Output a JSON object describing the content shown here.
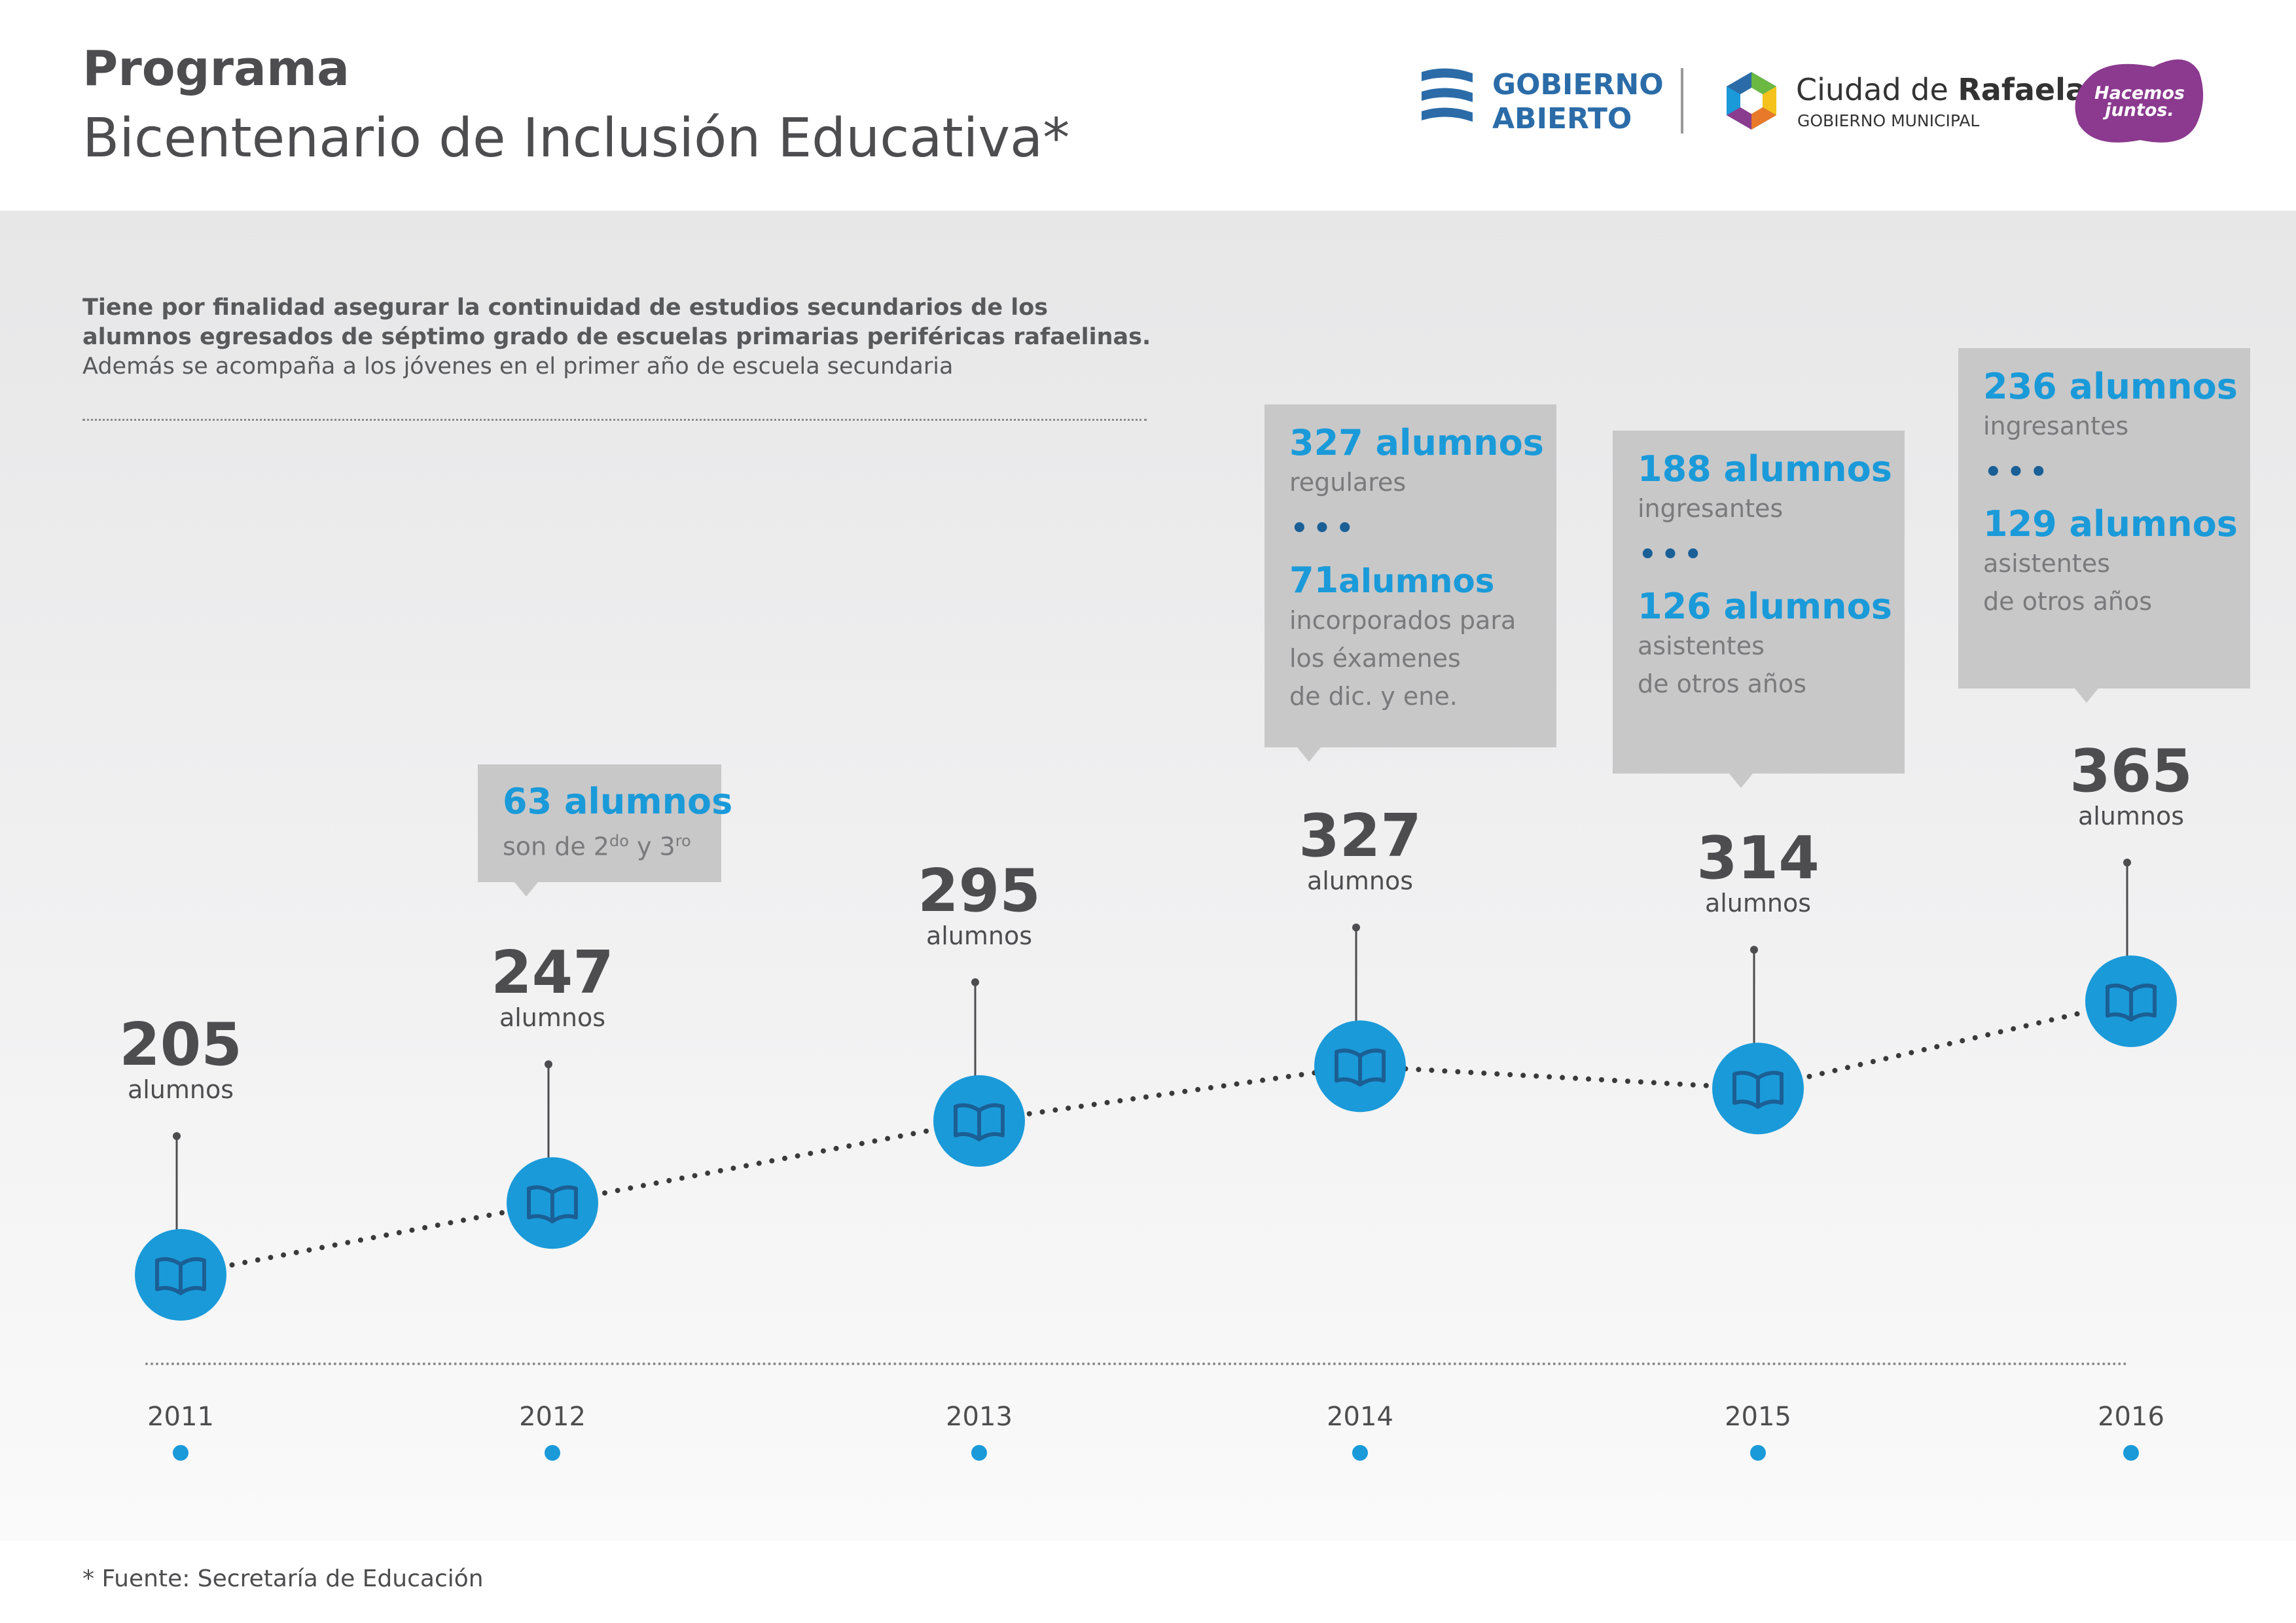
{
  "header": {
    "title_bold": "Programa",
    "title_main": "Bicentenario de Inclusión Educativa*",
    "logo_gobierno_abierto": {
      "line1": "GOBIERNO",
      "line2": "ABIERTO"
    },
    "logo_ciudad": {
      "name_prefix": "Ciudad de ",
      "name_bold": "Rafaela",
      "sub": "GOBIERNO MUNICIPAL"
    },
    "logo_hacemos": {
      "line1": "Hacemos",
      "line2": "juntos."
    }
  },
  "description": {
    "line1": "Tiene por finalidad asegurar la continuidad de estudios secundarios de los",
    "line2": "alumnos egresados de séptimo grado de escuelas primarias periféricas rafaelinas.",
    "line3": "Además se acompaña a los jóvenes en el primer año de escuela secundaria"
  },
  "chart_data": {
    "type": "line",
    "x": [
      "2011",
      "2012",
      "2013",
      "2014",
      "2015",
      "2016"
    ],
    "series": [
      {
        "values": [
          205,
          247,
          295,
          327,
          314,
          365
        ]
      }
    ],
    "value_unit_label": "alumnos",
    "ylim": [
      205,
      365
    ],
    "grid": false,
    "marker_icon": "book-icon",
    "colors": {
      "marker": "#1a9ad9",
      "line": "#3a3a3a",
      "value_text": "#4d4d4f",
      "callout_bg": "#c8c8c9",
      "callout_number": "#1a9ad9"
    }
  },
  "callouts": {
    "y2012": {
      "num": "63 alumnos",
      "text": "son de 2",
      "sup1": "do",
      "mid": " y 3",
      "sup2": "ro"
    },
    "y2014": {
      "num1": "327 alumnos",
      "text1": "regulares",
      "dots": "•••",
      "num2": "71",
      "num2_unit": "alumnos",
      "text2a": "incorporados para",
      "text2b": "los éxamenes",
      "text2c": "de dic. y ene."
    },
    "y2015": {
      "num1": "188 alumnos",
      "text1": "ingresantes",
      "dots": "•••",
      "num2": "126 alumnos",
      "text2a": "asistentes",
      "text2b": "de otros años"
    },
    "y2016": {
      "num1": "236 alumnos",
      "text1": "ingresantes",
      "dots": "•••",
      "num2": "129 alumnos",
      "text2a": "asistentes",
      "text2b": "de otros años"
    }
  },
  "footnote": "* Fuente: Secretaría de Educación"
}
